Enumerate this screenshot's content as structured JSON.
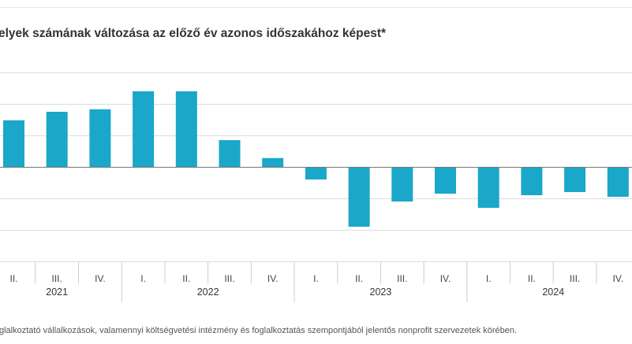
{
  "title": "elyek számának változása az előző év azonos időszakához képest*",
  "footnote": "glalkoztató vállalkozások, valamennyi költségvetési intézmény és foglalkoztatás szempontjából jelentős nonprofit szervezetek körében.",
  "chart_data": {
    "type": "bar",
    "title": "elyek számának változása az előző év azonos időszakához képest*",
    "categories": [
      "II.",
      "III.",
      "IV.",
      "I.",
      "II.",
      "III.",
      "IV.",
      "I.",
      "II.",
      "III.",
      "IV.",
      "I.",
      "II.",
      "III.",
      "IV."
    ],
    "years": [
      {
        "label": "2021",
        "count": 3
      },
      {
        "label": "2022",
        "count": 4
      },
      {
        "label": "2023",
        "count": 4
      },
      {
        "label": "2024",
        "count": 4
      }
    ],
    "values": [
      1.48,
      1.75,
      1.83,
      2.4,
      2.4,
      0.85,
      0.28,
      -0.4,
      -1.9,
      -1.1,
      -0.85,
      -1.3,
      -0.9,
      -0.8,
      -0.95
    ],
    "ylim": [
      -3,
      3
    ],
    "yticks_printed": false,
    "grid": true,
    "bar_color": "#1aa7c9"
  }
}
